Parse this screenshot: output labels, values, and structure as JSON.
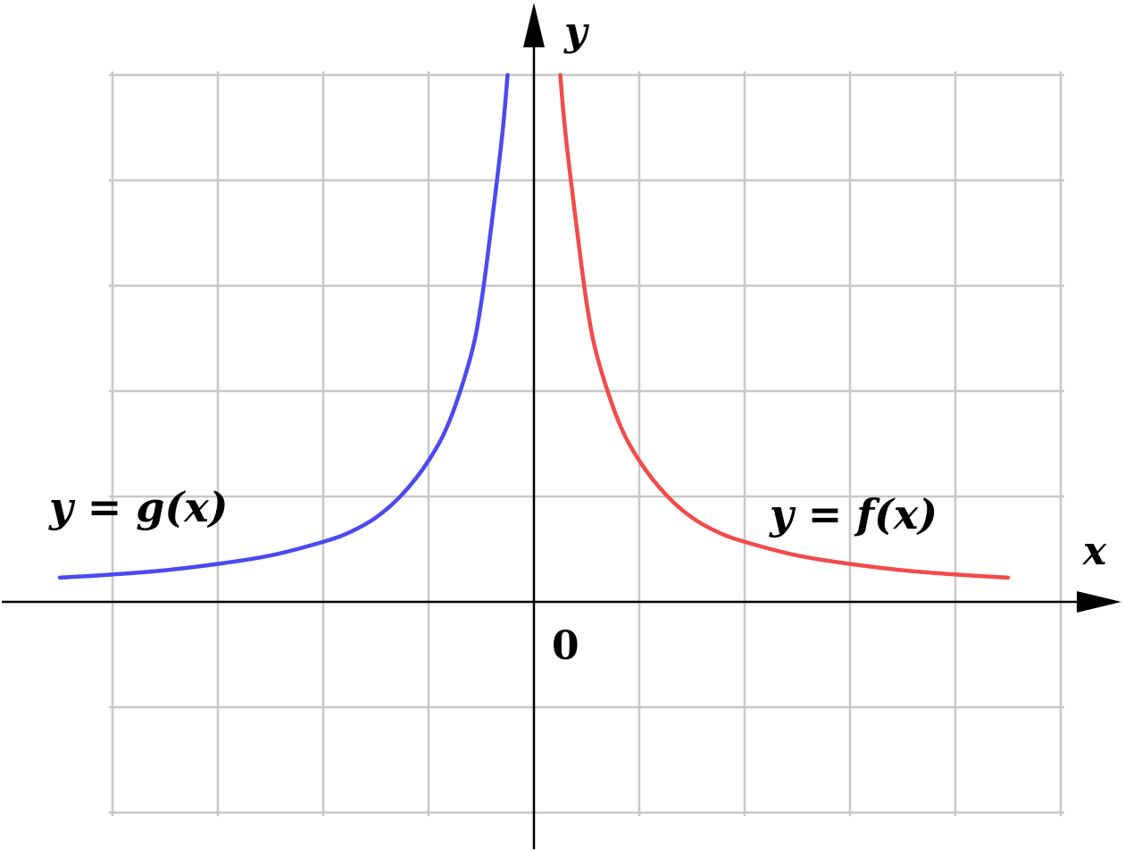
{
  "chart_data": {
    "type": "line",
    "title": "",
    "xlabel": "x",
    "ylabel": "y",
    "origin_label": "0",
    "xlim": [
      -4,
      5
    ],
    "ylim": [
      -2,
      5
    ],
    "grid": true,
    "series": [
      {
        "name": "y = g(x)",
        "color": "#4a4af0",
        "points": [
          [
            -4.5,
            0.23
          ],
          [
            -4,
            0.26
          ],
          [
            -3.5,
            0.3
          ],
          [
            -3,
            0.36
          ],
          [
            -2.5,
            0.44
          ],
          [
            -2,
            0.57
          ],
          [
            -1.75,
            0.66
          ],
          [
            -1.5,
            0.8
          ],
          [
            -1.25,
            1.02
          ],
          [
            -1,
            1.34
          ],
          [
            -0.8,
            1.72
          ],
          [
            -0.6,
            2.33
          ],
          [
            -0.5,
            2.84
          ],
          [
            -0.4,
            3.6
          ],
          [
            -0.3,
            4.44
          ],
          [
            -0.25,
            5.0
          ]
        ]
      },
      {
        "name": "y = f(x)",
        "color": "#f24b4b",
        "points": [
          [
            0.25,
            5.0
          ],
          [
            0.3,
            4.44
          ],
          [
            0.4,
            3.6
          ],
          [
            0.5,
            2.84
          ],
          [
            0.6,
            2.33
          ],
          [
            0.8,
            1.72
          ],
          [
            1,
            1.34
          ],
          [
            1.25,
            1.02
          ],
          [
            1.5,
            0.8
          ],
          [
            1.75,
            0.66
          ],
          [
            2,
            0.57
          ],
          [
            2.5,
            0.44
          ],
          [
            3,
            0.36
          ],
          [
            3.5,
            0.3
          ],
          [
            4,
            0.26
          ],
          [
            4.5,
            0.23
          ]
        ]
      }
    ]
  }
}
